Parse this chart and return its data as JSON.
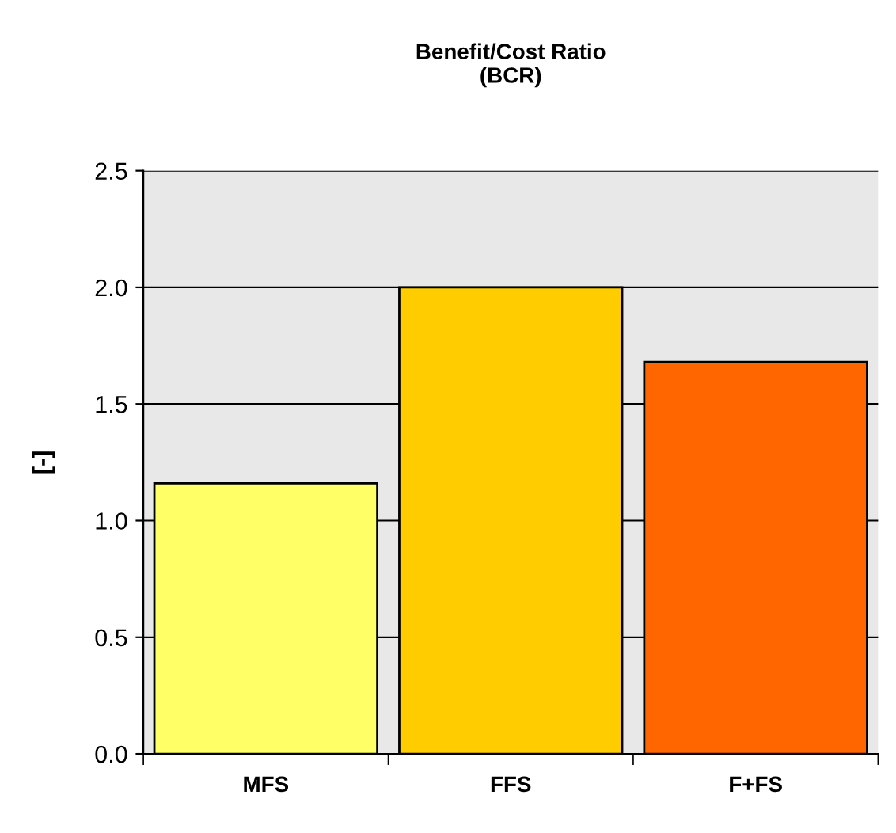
{
  "chart_data": {
    "type": "bar",
    "title": "Benefit/Cost Ratio\n(BCR)",
    "ylabel": "[-]",
    "categories": [
      "MFS",
      "FFS",
      "F+FS"
    ],
    "values": [
      1.16,
      2.0,
      1.68
    ],
    "colors": [
      "#ffff66",
      "#ffcc00",
      "#ff6600"
    ],
    "ylim": [
      0,
      2.5
    ],
    "yticks": [
      {
        "value": 0,
        "label": "0.0"
      },
      {
        "value": 0.5,
        "label": "0.5"
      },
      {
        "value": 1.0,
        "label": "1.0"
      },
      {
        "value": 1.5,
        "label": "1.5"
      },
      {
        "value": 2.0,
        "label": "2.0"
      },
      {
        "value": 2.5,
        "label": "2.5"
      }
    ],
    "grid": "y"
  }
}
